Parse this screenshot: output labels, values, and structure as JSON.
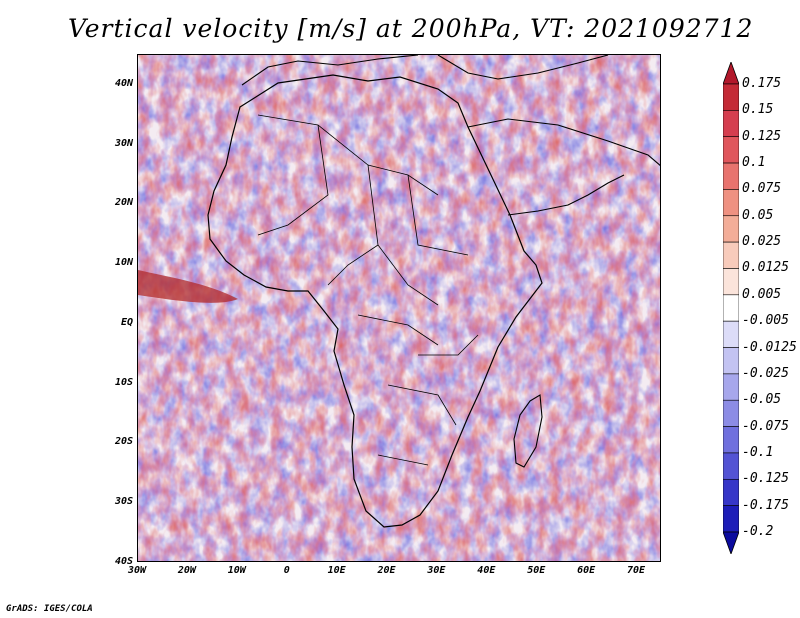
{
  "title": "Vertical velocity [m/s] at 200hPa, VT: 2021092712",
  "footer": "GrADS: IGES/COLA",
  "lat_labels": [
    "40N",
    "30N",
    "20N",
    "10N",
    "EQ",
    "10S",
    "20S",
    "30S",
    "40S"
  ],
  "lat_values": [
    40,
    30,
    20,
    10,
    0,
    -10,
    -20,
    -30,
    -40
  ],
  "lon_labels": [
    "30W",
    "20W",
    "10W",
    "0",
    "10E",
    "20E",
    "30E",
    "40E",
    "50E",
    "60E",
    "70E"
  ],
  "lon_values": [
    -30,
    -20,
    -10,
    0,
    10,
    20,
    30,
    40,
    50,
    60,
    70
  ],
  "map_extent": {
    "lon_min": -30,
    "lon_max": 75,
    "lat_min": -40,
    "lat_max": 45
  },
  "colorbar": {
    "labels": [
      "0.175",
      "0.15",
      "0.125",
      "0.1",
      "0.075",
      "0.05",
      "0.025",
      "0.0125",
      "0.005",
      "-0.005",
      "-0.0125",
      "-0.025",
      "-0.05",
      "-0.075",
      "-0.1",
      "-0.125",
      "-0.175",
      "-0.2"
    ],
    "colors": [
      "#b2182b",
      "#c42a36",
      "#d53e4f",
      "#e0565c",
      "#e8736e",
      "#ef9181",
      "#f3ad98",
      "#f8cbbb",
      "#fbe4db",
      "#ffffff",
      "#dcdcf8",
      "#c3c3f2",
      "#a7a7ec",
      "#8c8ce5",
      "#7070de",
      "#5353d4",
      "#3636c8",
      "#1d1db8",
      "#0b0b9e"
    ]
  },
  "colors": {
    "land_outline": "#000000",
    "background": "#ffffff"
  }
}
